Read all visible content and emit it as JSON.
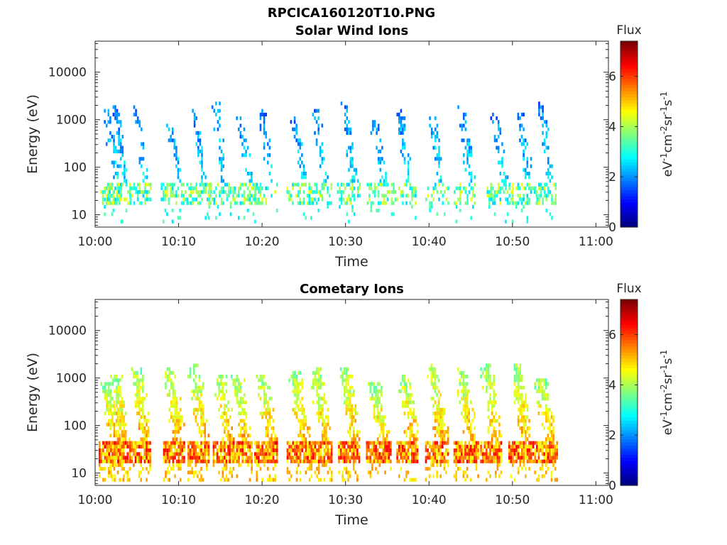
{
  "figure": {
    "title": "RPCICA160120T10.PNG"
  },
  "colorbar": {
    "title": "Flux",
    "ticks": [
      "0",
      "2",
      "4",
      "6"
    ],
    "min": 0,
    "max": 7.4,
    "colormap": "jet"
  },
  "chart_data": [
    {
      "type": "heatmap",
      "title": "Solar Wind Ions",
      "xlabel": "Time",
      "ylabel": "Energy (eV)",
      "xticks": [
        "10:00",
        "10:10",
        "10:20",
        "10:30",
        "10:40",
        "10:50",
        "11:00"
      ],
      "xlim_minutes": [
        0,
        61.5
      ],
      "yticks": [
        "10",
        "100",
        "1000",
        "10000"
      ],
      "ylim_eV": [
        5.5,
        45000
      ],
      "yscale": "log",
      "colorbar_label": "eV-1cm-2sr-1s-1",
      "bursts_minutes": [
        2,
        3,
        5.5,
        9.5,
        12.5,
        15,
        18,
        20.5,
        24.5,
        27,
        30.5,
        34,
        37,
        41,
        44.5,
        48.5,
        51.5,
        54
      ],
      "low_energy_band_eV": [
        15,
        45
      ],
      "low_band_typical_flux": 3.5,
      "sweep_typical_flux": 1.8
    },
    {
      "type": "heatmap",
      "title": "Cometary Ions",
      "xlabel": "Time",
      "ylabel": "Energy (eV)",
      "xticks": [
        "10:00",
        "10:10",
        "10:20",
        "10:30",
        "10:40",
        "10:50",
        "11:00"
      ],
      "xlim_minutes": [
        0,
        61.5
      ],
      "yticks": [
        "10",
        "100",
        "1000",
        "10000"
      ],
      "ylim_eV": [
        5.5,
        45000
      ],
      "yscale": "log",
      "colorbar_label": "eV-1cm-2sr-1s-1",
      "bursts_minutes": [
        2,
        3,
        5.5,
        9.5,
        12.5,
        15.5,
        17.5,
        20.5,
        24.5,
        27,
        30.5,
        34,
        37.5,
        41,
        44.5,
        47.5,
        51,
        54
      ],
      "low_energy_band_eV": [
        15,
        45
      ],
      "low_band_typical_flux": 5.5,
      "sweep_typical_flux": 3.8
    }
  ]
}
